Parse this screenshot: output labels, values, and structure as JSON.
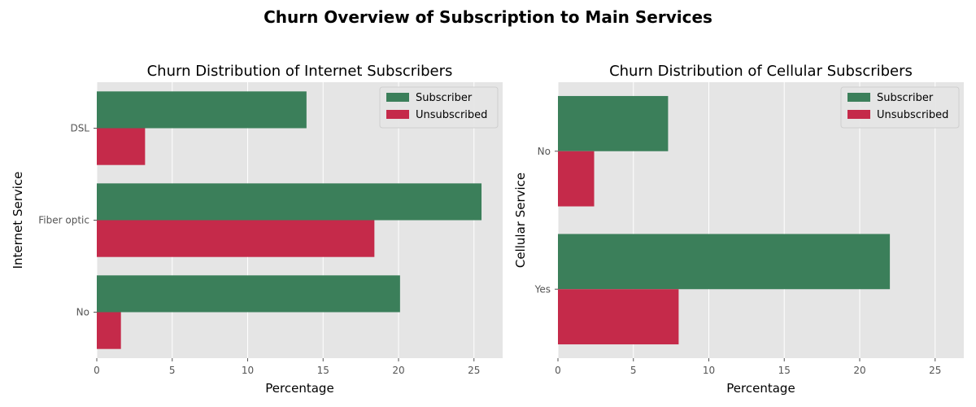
{
  "figure": {
    "title": "Churn Overview of Subscription to Main Services"
  },
  "chart_data": [
    {
      "type": "bar",
      "orientation": "horizontal",
      "title": "Churn Distribution of Internet Subscribers",
      "xlabel": "Percentage",
      "ylabel": "Internet Service",
      "categories": [
        "DSL",
        "Fiber optic",
        "No"
      ],
      "series": [
        {
          "name": "Subscriber",
          "color": "#3b7f5a",
          "values": [
            13.9,
            25.5,
            20.1
          ]
        },
        {
          "name": "Unsubscribed",
          "color": "#c52a4a",
          "values": [
            3.2,
            18.4,
            1.6
          ]
        }
      ],
      "xlim": [
        0,
        26.9
      ],
      "xticks": [
        0,
        5,
        10,
        15,
        20,
        25
      ],
      "grid": true,
      "legend_position": "upper right"
    },
    {
      "type": "bar",
      "orientation": "horizontal",
      "title": "Churn Distribution of Cellular Subscribers",
      "xlabel": "Percentage",
      "ylabel": "Cellular Service",
      "categories": [
        "No",
        "Yes"
      ],
      "series": [
        {
          "name": "Subscriber",
          "color": "#3b7f5a",
          "values": [
            7.3,
            22.0
          ]
        },
        {
          "name": "Unsubscribed",
          "color": "#c52a4a",
          "values": [
            2.4,
            8.0
          ]
        }
      ],
      "xlim": [
        0,
        26.9
      ],
      "xticks": [
        0,
        5,
        10,
        15,
        20,
        25
      ],
      "grid": true,
      "legend_position": "upper right"
    }
  ]
}
